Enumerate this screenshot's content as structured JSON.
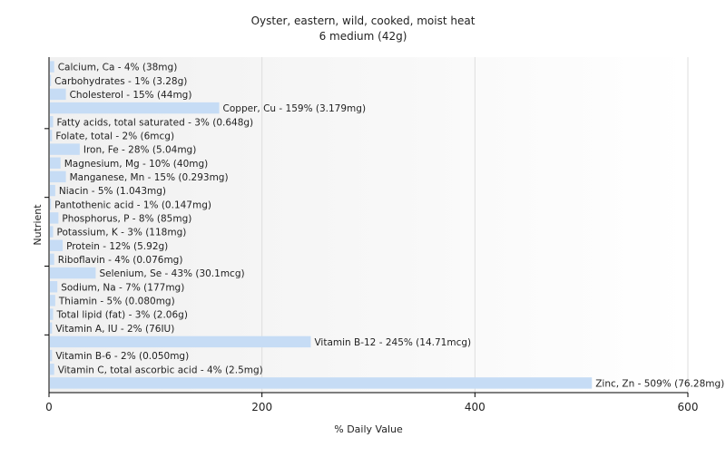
{
  "chart_data": {
    "type": "bar",
    "orientation": "horizontal",
    "title": "Oyster, eastern, wild, cooked, moist heat",
    "subtitle": "6 medium (42g)",
    "xlabel": "% Daily Value",
    "ylabel": "Nutrient",
    "xlim": [
      0,
      600
    ],
    "xticks": [
      0,
      200,
      400,
      600
    ],
    "grid": true,
    "legend": "none",
    "colors": {
      "bar": "#c6dcf5",
      "grid": "#dddddd",
      "axis": "#000000",
      "text": "#222222"
    },
    "categories": [
      "Calcium, Ca",
      "Carbohydrates",
      "Cholesterol",
      "Copper, Cu",
      "Fatty acids, total saturated",
      "Folate, total",
      "Iron, Fe",
      "Magnesium, Mg",
      "Manganese, Mn",
      "Niacin",
      "Pantothenic acid",
      "Phosphorus, P",
      "Potassium, K",
      "Protein",
      "Riboflavin",
      "Selenium, Se",
      "Sodium, Na",
      "Thiamin",
      "Total lipid (fat)",
      "Vitamin A, IU",
      "Vitamin B-12",
      "Vitamin B-6",
      "Vitamin C, total ascorbic acid",
      "Zinc, Zn"
    ],
    "values": [
      4,
      1,
      15,
      159,
      3,
      2,
      28,
      10,
      15,
      5,
      1,
      8,
      3,
      12,
      4,
      43,
      7,
      5,
      3,
      2,
      245,
      2,
      4,
      509
    ],
    "labels": [
      "Calcium, Ca - 4% (38mg)",
      "Carbohydrates - 1% (3.28g)",
      "Cholesterol - 15% (44mg)",
      "Copper, Cu - 159% (3.179mg)",
      "Fatty acids, total saturated - 3% (0.648g)",
      "Folate, total - 2% (6mcg)",
      "Iron, Fe - 28% (5.04mg)",
      "Magnesium, Mg - 10% (40mg)",
      "Manganese, Mn - 15% (0.293mg)",
      "Niacin - 5% (1.043mg)",
      "Pantothenic acid - 1% (0.147mg)",
      "Phosphorus, P - 8% (85mg)",
      "Potassium, K - 3% (118mg)",
      "Protein - 12% (5.92g)",
      "Riboflavin - 4% (0.076mg)",
      "Selenium, Se - 43% (30.1mcg)",
      "Sodium, Na - 7% (177mg)",
      "Thiamin - 5% (0.080mg)",
      "Total lipid (fat) - 3% (2.06g)",
      "Vitamin A, IU - 2% (76IU)",
      "Vitamin B-12 - 245% (14.71mcg)",
      "Vitamin B-6 - 2% (0.050mg)",
      "Vitamin C, total ascorbic acid - 4% (2.5mg)",
      "Zinc, Zn - 509% (76.28mg)"
    ]
  }
}
